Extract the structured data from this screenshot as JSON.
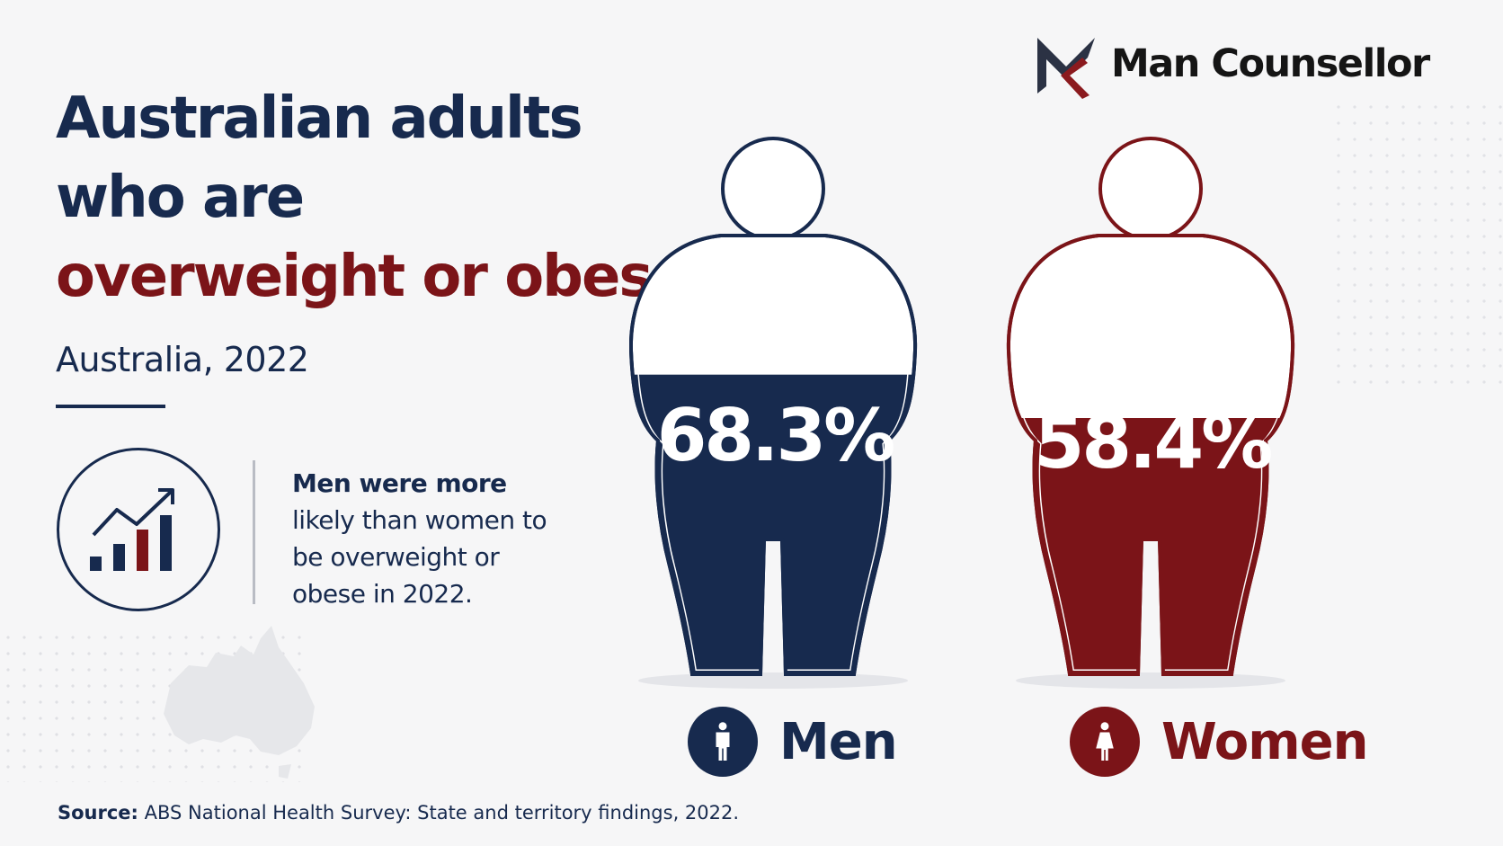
{
  "brand": {
    "name": "Man Counsellor",
    "logo_colors": [
      "#2b3244",
      "#8b1a1e"
    ]
  },
  "title": {
    "line1": "Australian adults",
    "line2": "who are",
    "line3": "overweight or obese"
  },
  "subtitle": "Australia, 2022",
  "note": {
    "bold": "Men were more",
    "rest": "likely than women to be overweight or obese in 2022."
  },
  "source": {
    "label": "Source:",
    "text": "ABS National Health Survey: State and territory findings, 2022."
  },
  "icons": [
    "bar-chart-trend-icon",
    "male-person-icon",
    "female-person-icon",
    "australia-map-icon"
  ],
  "colors": {
    "navy": "#172a4e",
    "maroon": "#7b1418"
  },
  "chart_data": {
    "type": "bar",
    "categories": [
      "Men",
      "Women"
    ],
    "values": [
      68.3,
      58.4
    ],
    "value_labels": [
      "68.3%",
      "58.4%"
    ],
    "unit": "%",
    "ylim": [
      0,
      100
    ],
    "colors": [
      "#172a4e",
      "#7b1418"
    ]
  }
}
